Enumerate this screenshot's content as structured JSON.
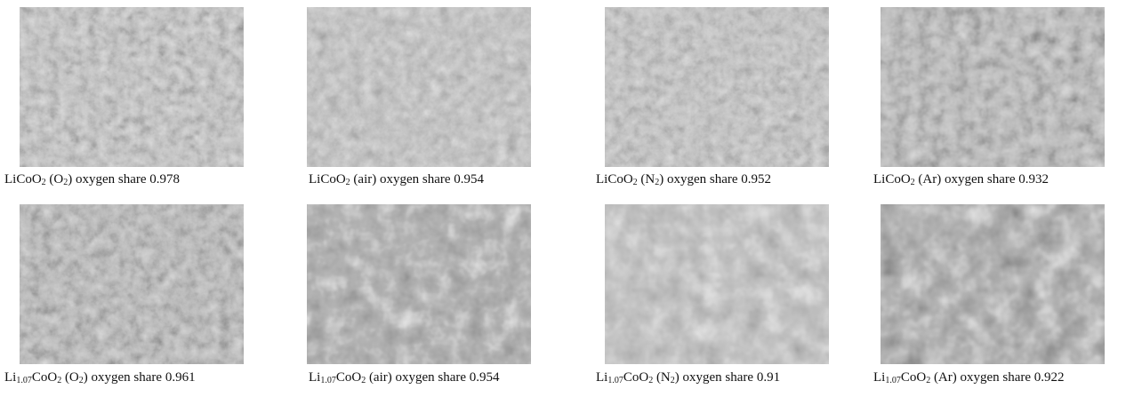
{
  "panels": [
    {
      "caption": [
        {
          "t": "LiCoO"
        },
        {
          "sub": "2"
        },
        {
          "t": " (O"
        },
        {
          "sub": "2"
        },
        {
          "t": ") oxygen share 0.978"
        }
      ]
    },
    {
      "caption": [
        {
          "t": "LiCoO"
        },
        {
          "sub": "2"
        },
        {
          "t": " (air) oxygen share 0.954"
        }
      ]
    },
    {
      "caption": [
        {
          "t": "LiCoO"
        },
        {
          "sub": "2"
        },
        {
          "t": " (N"
        },
        {
          "sub": "2"
        },
        {
          "t": ") oxygen share 0.952"
        }
      ]
    },
    {
      "caption": [
        {
          "t": "LiCoO"
        },
        {
          "sub": "2"
        },
        {
          "t": " (Ar) oxygen share 0.932"
        }
      ]
    },
    {
      "caption": [
        {
          "t": "Li"
        },
        {
          "sub": "1.07"
        },
        {
          "t": "CoO"
        },
        {
          "sub": "2"
        },
        {
          "t": " (O"
        },
        {
          "sub": "2"
        },
        {
          "t": ") oxygen share 0.961"
        }
      ]
    },
    {
      "caption": [
        {
          "t": "Li"
        },
        {
          "sub": "1.07"
        },
        {
          "t": "CoO"
        },
        {
          "sub": "2"
        },
        {
          "t": " (air) oxygen share 0.954"
        }
      ]
    },
    {
      "caption": [
        {
          "t": "Li"
        },
        {
          "sub": "1.07"
        },
        {
          "t": "CoO"
        },
        {
          "sub": "2"
        },
        {
          "t": " (N"
        },
        {
          "sub": "2"
        },
        {
          "t": ") oxygen share 0.91"
        }
      ]
    },
    {
      "caption": [
        {
          "t": "Li"
        },
        {
          "sub": "1.07"
        },
        {
          "t": "CoO"
        },
        {
          "sub": "2"
        },
        {
          "t": " (Ar) oxygen share 0.922"
        }
      ]
    }
  ]
}
